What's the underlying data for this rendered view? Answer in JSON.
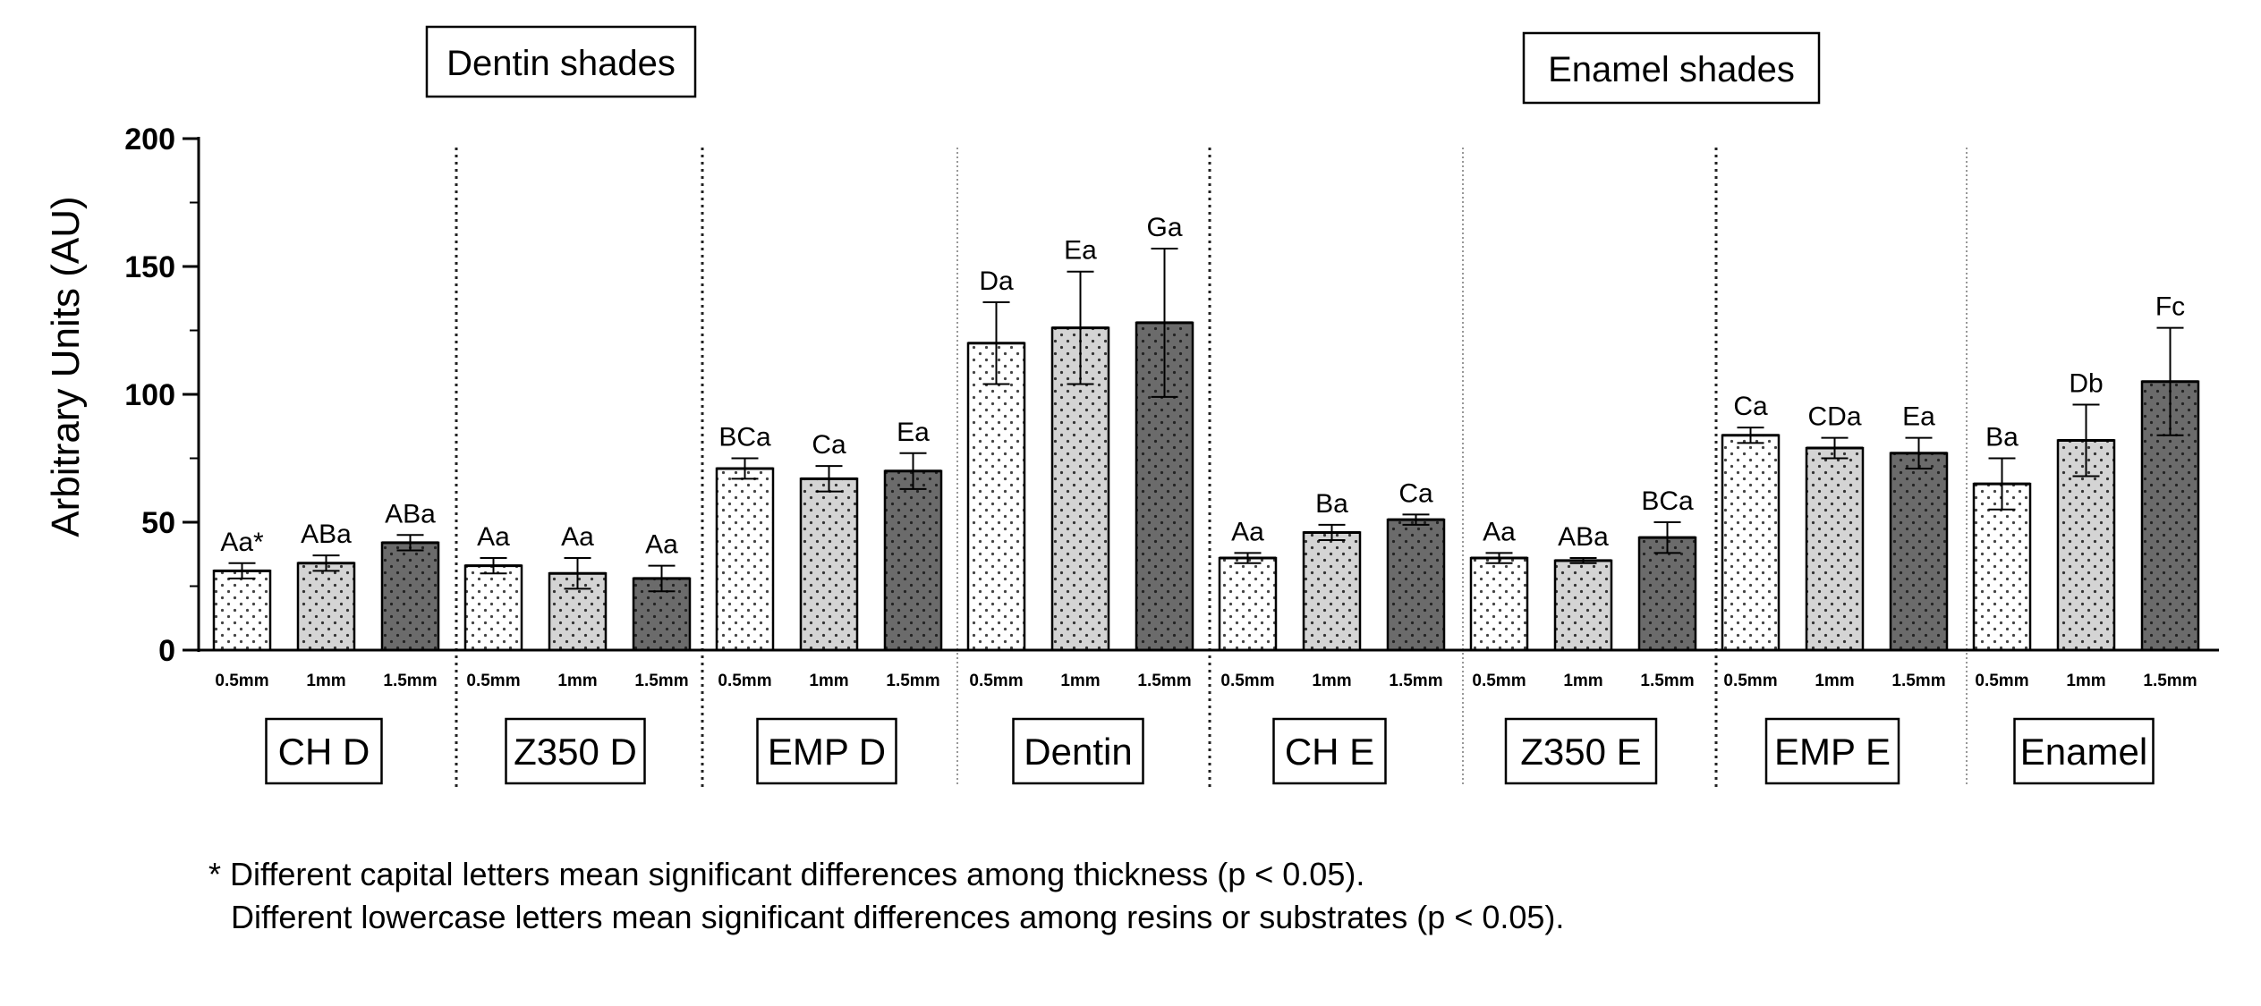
{
  "chart_data": {
    "type": "bar",
    "ylabel": "Arbitrary Units (AU)",
    "ylim": [
      0,
      200
    ],
    "yticks": [
      "0",
      "50",
      "100",
      "150",
      "200"
    ],
    "grid": false,
    "legend": "none",
    "section_labels": [
      "Dentin shades",
      "Enamel shades"
    ],
    "thickness_labels": [
      "0.5mm",
      "1mm",
      "1.5mm"
    ],
    "fills": {
      "0.5mm": "#ffffff",
      "1mm": "#d4d4d4",
      "1.5mm": "#6b6b6b"
    },
    "groups": [
      {
        "name": "CH D",
        "values": [
          31,
          34,
          42
        ],
        "errors": [
          3,
          3,
          3
        ],
        "letters": [
          "Aa*",
          "ABa",
          "ABa"
        ]
      },
      {
        "name": "Z350 D",
        "values": [
          33,
          30,
          28
        ],
        "errors": [
          3,
          6,
          5
        ],
        "letters": [
          "Aa",
          "Aa",
          "Aa"
        ]
      },
      {
        "name": "EMP D",
        "values": [
          71,
          67,
          70
        ],
        "errors": [
          4,
          5,
          7
        ],
        "letters": [
          "BCa",
          "Ca",
          "Ea"
        ]
      },
      {
        "name": "Dentin",
        "values": [
          120,
          126,
          128
        ],
        "errors": [
          16,
          22,
          29
        ],
        "letters": [
          "Da",
          "Ea",
          "Ga"
        ]
      },
      {
        "name": "CH E",
        "values": [
          36,
          46,
          51
        ],
        "errors": [
          2,
          3,
          2
        ],
        "letters": [
          "Aa",
          "Ba",
          "Ca"
        ]
      },
      {
        "name": "Z350 E",
        "values": [
          36,
          35,
          44
        ],
        "errors": [
          2,
          1,
          6
        ],
        "letters": [
          "Aa",
          "ABa",
          "BCa"
        ]
      },
      {
        "name": "EMP E",
        "values": [
          84,
          79,
          77
        ],
        "errors": [
          3,
          4,
          6
        ],
        "letters": [
          "Ca",
          "CDa",
          "Ea"
        ]
      },
      {
        "name": "Enamel",
        "values": [
          65,
          82,
          105
        ],
        "errors": [
          10,
          14,
          21
        ],
        "letters": [
          "Ba",
          "Db",
          "Fc"
        ]
      }
    ],
    "notes": [
      "* Different capital letters mean significant differences among thickness (p < 0.05).",
      "Different lowercase letters mean significant differences among resins or substrates (p < 0.05)."
    ]
  }
}
